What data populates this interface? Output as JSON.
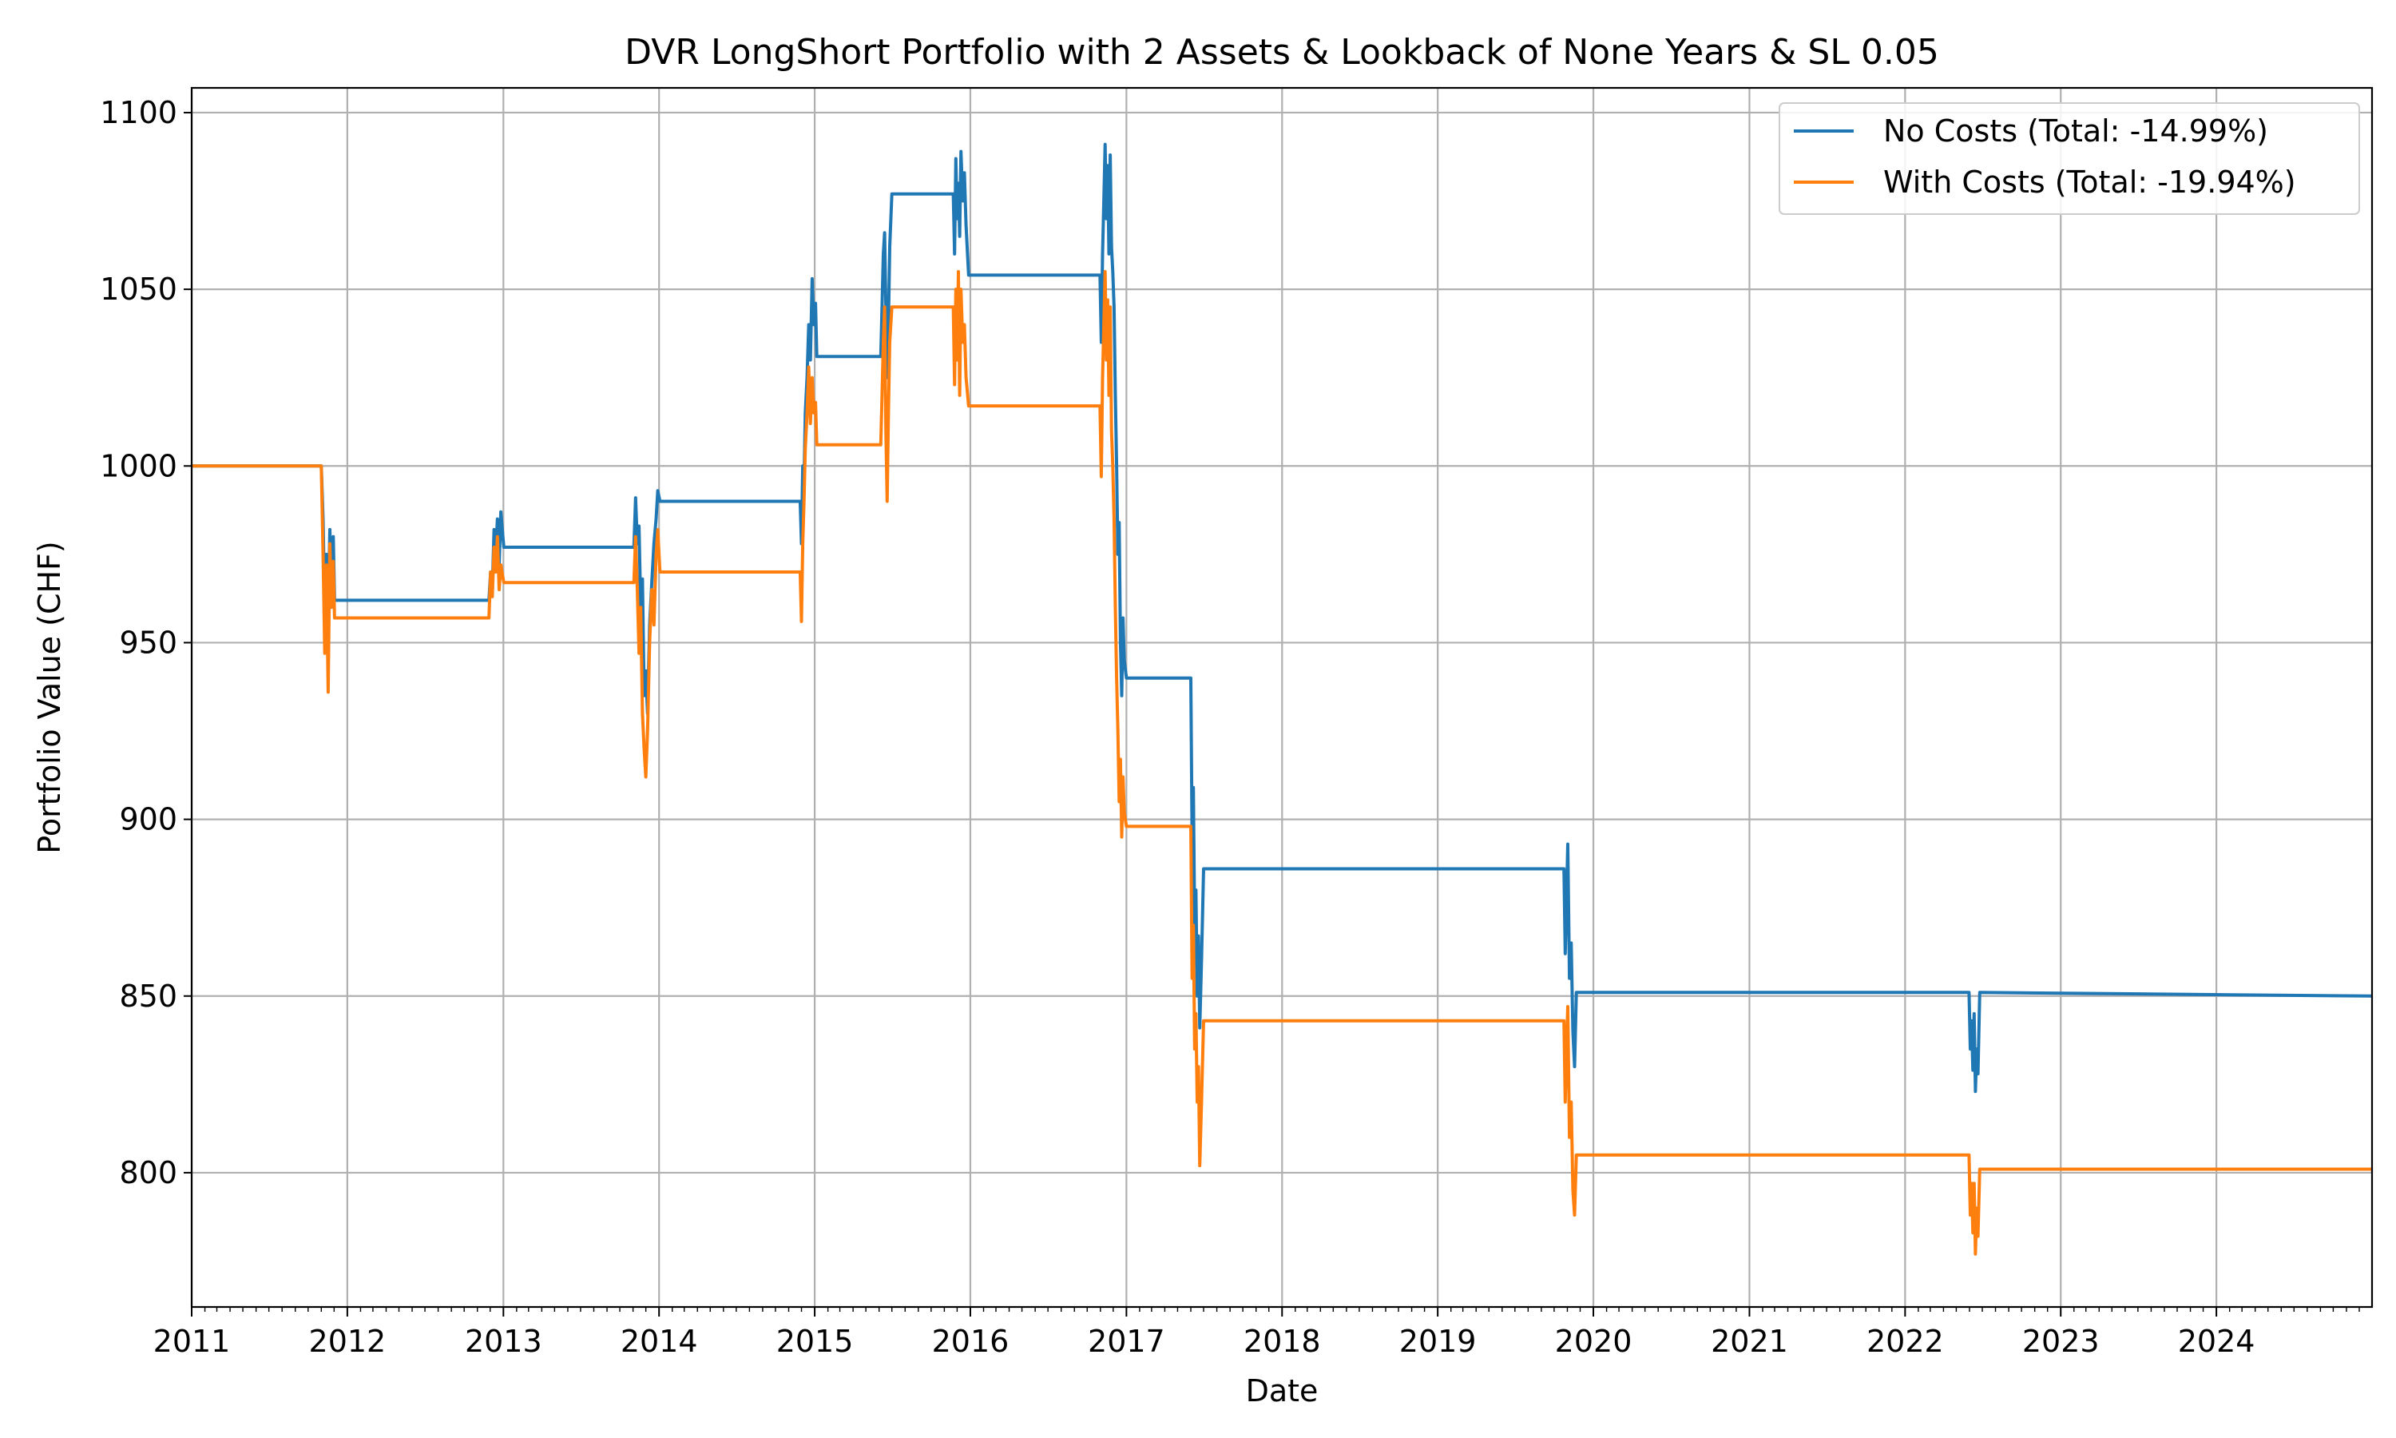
{
  "chart_data": {
    "type": "line",
    "title": "DVR LongShort Portfolio with 2 Assets & Lookback of None Years & SL 0.05",
    "xlabel": "Date",
    "ylabel": "Portfolio Value (CHF)",
    "xlim": [
      "2011-01-01",
      "2024-12-31"
    ],
    "ylim": [
      762,
      1107
    ],
    "x_ticks": [
      "2011",
      "2012",
      "2013",
      "2014",
      "2015",
      "2016",
      "2017",
      "2018",
      "2019",
      "2020",
      "2021",
      "2022",
      "2023",
      "2024"
    ],
    "y_ticks": [
      800,
      850,
      900,
      950,
      1000,
      1050,
      1100
    ],
    "grid": true,
    "legend_position": "upper right",
    "series": [
      {
        "name": "No Costs (Total: -14.99%)",
        "color": "#1f77b4",
        "points": [
          [
            "2011-01-01",
            1000
          ],
          [
            "2011-11-01",
            1000
          ],
          [
            "2011-11-05",
            985
          ],
          [
            "2011-11-09",
            960
          ],
          [
            "2011-11-13",
            975
          ],
          [
            "2011-11-17",
            958
          ],
          [
            "2011-11-21",
            982
          ],
          [
            "2011-11-25",
            968
          ],
          [
            "2011-11-29",
            980
          ],
          [
            "2011-12-02",
            962
          ],
          [
            "2012-11-28",
            962
          ],
          [
            "2012-12-02",
            970
          ],
          [
            "2012-12-06",
            965
          ],
          [
            "2012-12-10",
            982
          ],
          [
            "2012-12-14",
            975
          ],
          [
            "2012-12-18",
            985
          ],
          [
            "2012-12-22",
            972
          ],
          [
            "2012-12-26",
            987
          ],
          [
            "2013-01-02",
            977
          ],
          [
            "2013-11-03",
            977
          ],
          [
            "2013-11-07",
            991
          ],
          [
            "2013-11-11",
            978
          ],
          [
            "2013-11-15",
            983
          ],
          [
            "2013-11-19",
            960
          ],
          [
            "2013-11-23",
            968
          ],
          [
            "2013-11-27",
            935
          ],
          [
            "2013-12-01",
            942
          ],
          [
            "2013-12-05",
            930
          ],
          [
            "2013-12-10",
            955
          ],
          [
            "2013-12-15",
            967
          ],
          [
            "2013-12-20",
            978
          ],
          [
            "2013-12-25",
            985
          ],
          [
            "2013-12-29",
            993
          ],
          [
            "2014-01-03",
            990
          ],
          [
            "2014-11-28",
            990
          ],
          [
            "2014-12-01",
            978
          ],
          [
            "2014-12-04",
            1000
          ],
          [
            "2014-12-07",
            995
          ],
          [
            "2014-12-10",
            1015
          ],
          [
            "2014-12-14",
            1025
          ],
          [
            "2014-12-18",
            1040
          ],
          [
            "2014-12-22",
            1030
          ],
          [
            "2014-12-26",
            1053
          ],
          [
            "2014-12-30",
            1040
          ],
          [
            "2015-01-03",
            1046
          ],
          [
            "2015-01-06",
            1031
          ],
          [
            "2015-06-05",
            1031
          ],
          [
            "2015-06-08",
            1045
          ],
          [
            "2015-06-11",
            1060
          ],
          [
            "2015-06-14",
            1066
          ],
          [
            "2015-06-17",
            1045
          ],
          [
            "2015-06-20",
            1025
          ],
          [
            "2015-06-23",
            1040
          ],
          [
            "2015-06-26",
            1062
          ],
          [
            "2015-07-01",
            1077
          ],
          [
            "2015-11-22",
            1077
          ],
          [
            "2015-11-25",
            1060
          ],
          [
            "2015-11-28",
            1087
          ],
          [
            "2015-12-01",
            1070
          ],
          [
            "2015-12-04",
            1080
          ],
          [
            "2015-12-07",
            1065
          ],
          [
            "2015-12-10",
            1089
          ],
          [
            "2015-12-14",
            1075
          ],
          [
            "2015-12-18",
            1083
          ],
          [
            "2015-12-22",
            1068
          ],
          [
            "2015-12-28",
            1054
          ],
          [
            "2016-10-31",
            1054
          ],
          [
            "2016-11-03",
            1035
          ],
          [
            "2016-11-06",
            1060
          ],
          [
            "2016-11-09",
            1075
          ],
          [
            "2016-11-12",
            1091
          ],
          [
            "2016-11-15",
            1070
          ],
          [
            "2016-11-18",
            1085
          ],
          [
            "2016-11-21",
            1060
          ],
          [
            "2016-11-24",
            1088
          ],
          [
            "2016-11-27",
            1062
          ],
          [
            "2016-11-30",
            1055
          ],
          [
            "2016-12-03",
            1045
          ],
          [
            "2016-12-06",
            1020
          ],
          [
            "2016-12-09",
            1000
          ],
          [
            "2016-12-12",
            975
          ],
          [
            "2016-12-15",
            984
          ],
          [
            "2016-12-18",
            950
          ],
          [
            "2016-12-21",
            935
          ],
          [
            "2016-12-24",
            957
          ],
          [
            "2016-12-27",
            945
          ],
          [
            "2017-01-01",
            940
          ],
          [
            "2017-06-01",
            940
          ],
          [
            "2017-06-04",
            895
          ],
          [
            "2017-06-07",
            909
          ],
          [
            "2017-06-10",
            870
          ],
          [
            "2017-06-13",
            880
          ],
          [
            "2017-06-16",
            850
          ],
          [
            "2017-06-19",
            867
          ],
          [
            "2017-06-22",
            841
          ],
          [
            "2017-06-26",
            860
          ],
          [
            "2017-07-01",
            886
          ],
          [
            "2019-10-24",
            886
          ],
          [
            "2019-10-27",
            862
          ],
          [
            "2019-10-30",
            877
          ],
          [
            "2019-11-02",
            893
          ],
          [
            "2019-11-06",
            855
          ],
          [
            "2019-11-10",
            865
          ],
          [
            "2019-11-14",
            840
          ],
          [
            "2019-11-18",
            830
          ],
          [
            "2019-11-22",
            851
          ],
          [
            "2022-05-31",
            851
          ],
          [
            "2022-06-03",
            835
          ],
          [
            "2022-06-06",
            843
          ],
          [
            "2022-06-09",
            829
          ],
          [
            "2022-06-12",
            845
          ],
          [
            "2022-06-15",
            823
          ],
          [
            "2022-06-18",
            835
          ],
          [
            "2022-06-21",
            828
          ],
          [
            "2022-06-25",
            851
          ],
          [
            "2024-12-31",
            850
          ]
        ]
      },
      {
        "name": "With Costs (Total: -19.94%)",
        "color": "#ff7f0e",
        "points": [
          [
            "2011-01-01",
            1000
          ],
          [
            "2011-11-01",
            1000
          ],
          [
            "2011-11-05",
            975
          ],
          [
            "2011-11-09",
            947
          ],
          [
            "2011-11-13",
            972
          ],
          [
            "2011-11-17",
            936
          ],
          [
            "2011-11-21",
            978
          ],
          [
            "2011-11-25",
            960
          ],
          [
            "2011-11-29",
            973
          ],
          [
            "2011-12-02",
            957
          ],
          [
            "2012-11-28",
            957
          ],
          [
            "2012-12-02",
            970
          ],
          [
            "2012-12-06",
            963
          ],
          [
            "2012-12-10",
            977
          ],
          [
            "2012-12-14",
            970
          ],
          [
            "2012-12-18",
            980
          ],
          [
            "2012-12-22",
            965
          ],
          [
            "2012-12-26",
            972
          ],
          [
            "2013-01-02",
            967
          ],
          [
            "2013-11-03",
            967
          ],
          [
            "2013-11-07",
            980
          ],
          [
            "2013-11-11",
            965
          ],
          [
            "2013-11-15",
            947
          ],
          [
            "2013-11-19",
            960
          ],
          [
            "2013-11-23",
            930
          ],
          [
            "2013-11-27",
            920
          ],
          [
            "2013-12-01",
            912
          ],
          [
            "2013-12-05",
            925
          ],
          [
            "2013-12-10",
            950
          ],
          [
            "2013-12-15",
            965
          ],
          [
            "2013-12-20",
            955
          ],
          [
            "2013-12-25",
            975
          ],
          [
            "2013-12-29",
            982
          ],
          [
            "2014-01-03",
            970
          ],
          [
            "2014-11-28",
            970
          ],
          [
            "2014-12-01",
            956
          ],
          [
            "2014-12-04",
            978
          ],
          [
            "2014-12-07",
            990
          ],
          [
            "2014-12-10",
            1005
          ],
          [
            "2014-12-14",
            1015
          ],
          [
            "2014-12-18",
            1028
          ],
          [
            "2014-12-22",
            1012
          ],
          [
            "2014-12-26",
            1025
          ],
          [
            "2014-12-30",
            1015
          ],
          [
            "2015-01-03",
            1018
          ],
          [
            "2015-01-06",
            1006
          ],
          [
            "2015-06-05",
            1006
          ],
          [
            "2015-06-08",
            1020
          ],
          [
            "2015-06-11",
            1035
          ],
          [
            "2015-06-14",
            1045
          ],
          [
            "2015-06-17",
            1010
          ],
          [
            "2015-06-20",
            990
          ],
          [
            "2015-06-23",
            1015
          ],
          [
            "2015-06-26",
            1035
          ],
          [
            "2015-07-01",
            1045
          ],
          [
            "2015-11-22",
            1045
          ],
          [
            "2015-11-25",
            1023
          ],
          [
            "2015-11-28",
            1050
          ],
          [
            "2015-12-01",
            1030
          ],
          [
            "2015-12-04",
            1055
          ],
          [
            "2015-12-07",
            1020
          ],
          [
            "2015-12-10",
            1050
          ],
          [
            "2015-12-14",
            1035
          ],
          [
            "2015-12-18",
            1040
          ],
          [
            "2015-12-22",
            1025
          ],
          [
            "2015-12-28",
            1017
          ],
          [
            "2016-10-31",
            1017
          ],
          [
            "2016-11-03",
            997
          ],
          [
            "2016-11-06",
            1025
          ],
          [
            "2016-11-09",
            1040
          ],
          [
            "2016-11-12",
            1055
          ],
          [
            "2016-11-15",
            1030
          ],
          [
            "2016-11-18",
            1047
          ],
          [
            "2016-11-21",
            1020
          ],
          [
            "2016-11-24",
            1045
          ],
          [
            "2016-11-27",
            1010
          ],
          [
            "2016-11-30",
            1000
          ],
          [
            "2016-12-03",
            985
          ],
          [
            "2016-12-06",
            960
          ],
          [
            "2016-12-09",
            940
          ],
          [
            "2016-12-12",
            925
          ],
          [
            "2016-12-15",
            905
          ],
          [
            "2016-12-18",
            917
          ],
          [
            "2016-12-21",
            895
          ],
          [
            "2016-12-24",
            912
          ],
          [
            "2016-12-27",
            902
          ],
          [
            "2017-01-01",
            898
          ],
          [
            "2017-06-01",
            898
          ],
          [
            "2017-06-04",
            855
          ],
          [
            "2017-06-07",
            870
          ],
          [
            "2017-06-10",
            835
          ],
          [
            "2017-06-13",
            845
          ],
          [
            "2017-06-16",
            820
          ],
          [
            "2017-06-19",
            830
          ],
          [
            "2017-06-22",
            802
          ],
          [
            "2017-06-26",
            820
          ],
          [
            "2017-07-01",
            843
          ],
          [
            "2019-10-24",
            843
          ],
          [
            "2019-10-27",
            820
          ],
          [
            "2019-10-30",
            835
          ],
          [
            "2019-11-02",
            847
          ],
          [
            "2019-11-06",
            810
          ],
          [
            "2019-11-10",
            820
          ],
          [
            "2019-11-14",
            795
          ],
          [
            "2019-11-18",
            788
          ],
          [
            "2019-11-22",
            805
          ],
          [
            "2022-05-31",
            805
          ],
          [
            "2022-06-03",
            788
          ],
          [
            "2022-06-06",
            797
          ],
          [
            "2022-06-09",
            783
          ],
          [
            "2022-06-12",
            797
          ],
          [
            "2022-06-15",
            777
          ],
          [
            "2022-06-18",
            790
          ],
          [
            "2022-06-21",
            782
          ],
          [
            "2022-06-25",
            801
          ],
          [
            "2024-12-31",
            801
          ]
        ]
      }
    ]
  }
}
